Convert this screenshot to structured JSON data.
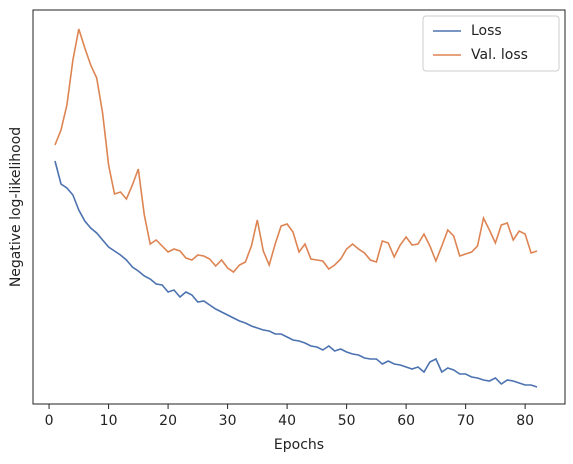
{
  "chart_data": {
    "type": "line",
    "xlabel": "Epochs",
    "ylabel": "Negative log-likelihood",
    "x": [
      1,
      2,
      3,
      4,
      5,
      6,
      7,
      8,
      9,
      10,
      11,
      12,
      13,
      14,
      15,
      16,
      17,
      18,
      19,
      20,
      21,
      22,
      23,
      24,
      25,
      26,
      27,
      28,
      29,
      30,
      31,
      32,
      33,
      34,
      35,
      36,
      37,
      38,
      39,
      40,
      41,
      42,
      43,
      44,
      45,
      46,
      47,
      48,
      49,
      50,
      51,
      52,
      53,
      54,
      55,
      56,
      57,
      58,
      59,
      60,
      61,
      62,
      63,
      64,
      65,
      66,
      67,
      68,
      69,
      70,
      71,
      72,
      73,
      74,
      75,
      76,
      77,
      78,
      79,
      80,
      81,
      82
    ],
    "series": [
      {
        "name": "Loss",
        "color": "#4c72b0",
        "values": [
          243,
          220,
          216,
          209,
          194,
          183,
          176,
          171,
          164,
          157,
          153,
          149,
          144,
          137,
          133,
          128,
          125,
          120,
          119,
          112,
          114,
          107,
          112,
          109,
          102,
          103,
          99,
          95,
          92,
          89,
          86,
          83,
          81,
          78,
          76,
          74,
          73,
          70,
          70,
          67,
          64,
          63,
          61,
          58,
          57,
          54,
          58,
          53,
          55,
          52,
          50,
          49,
          46,
          45,
          45,
          40,
          43,
          40,
          39,
          37,
          35,
          37,
          32,
          42,
          45,
          32,
          36,
          34,
          30,
          30,
          27,
          26,
          24,
          23,
          26,
          20,
          24,
          23,
          21,
          19,
          19,
          17
        ]
      },
      {
        "name": "Val. loss",
        "color": "#dd8452",
        "values": [
          259,
          274,
          299,
          344,
          375,
          356,
          339,
          326,
          291,
          239,
          210,
          212,
          205,
          219,
          235,
          189,
          160,
          164,
          158,
          152,
          155,
          153,
          146,
          144,
          149,
          148,
          145,
          138,
          144,
          136,
          132,
          139,
          142,
          158,
          184,
          153,
          139,
          160,
          178,
          180,
          172,
          152,
          160,
          145,
          144,
          143,
          135,
          139,
          145,
          155,
          160,
          155,
          151,
          144,
          142,
          163,
          161,
          147,
          159,
          167,
          159,
          160,
          170,
          158,
          143,
          158,
          174,
          168,
          148,
          150,
          152,
          158,
          186,
          174,
          161,
          179,
          181,
          164,
          173,
          170,
          151,
          153
        ]
      }
    ],
    "xlim": [
      -2.7,
      86.7
    ],
    "xticks": [
      0,
      10,
      20,
      30,
      40,
      50,
      60,
      70,
      80
    ],
    "ylim": [
      0,
      394
    ],
    "legend": "upper right"
  }
}
